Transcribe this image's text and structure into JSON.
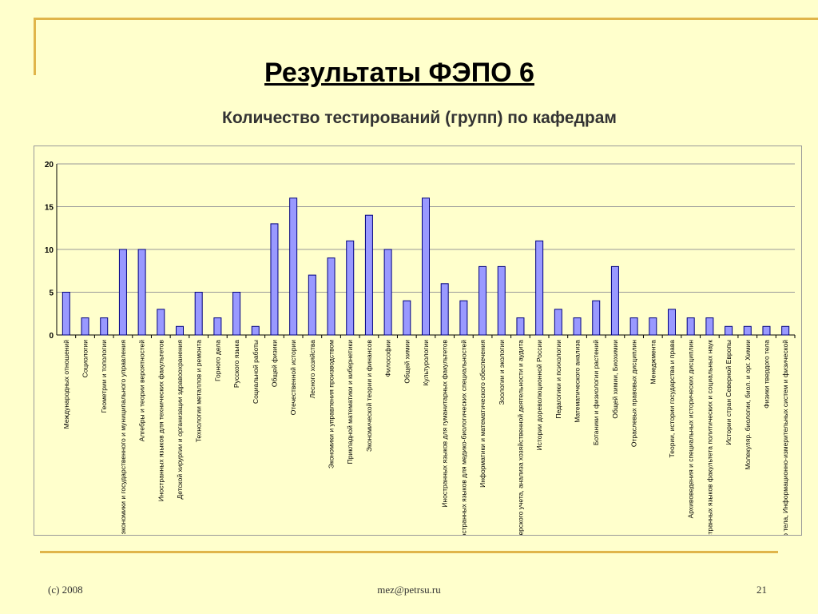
{
  "slide": {
    "title": "Результаты ФЭПО 6",
    "subtitle": "Количество тестирований (групп) по кафедрам",
    "footer_left": "(c) 2008",
    "footer_center": "mez@petrsu.ru",
    "footer_right": "21"
  },
  "colors": {
    "background": "#FFFFCC",
    "bar_fill": "#9999FF",
    "bar_stroke": "#000080",
    "accent_line": "#E0B54A"
  },
  "chart_data": {
    "type": "bar",
    "title": "",
    "xlabel": "",
    "ylabel": "",
    "ylim": [
      0,
      20
    ],
    "yticks": [
      "0",
      "5",
      "10",
      "15",
      "20"
    ],
    "grid": true,
    "legend": "none",
    "categories": [
      "Международных отношений",
      "Социологии",
      "Геометрии и топологии",
      "Теоретической экономики и государственного и муниципального управления",
      "Алгебры и теории вероятностей",
      "Иностранных языков для технических факультетов",
      "Детской хирургии и организации здравоохранения",
      "Технологии металлов и ремонта",
      "Горного дела",
      "Русского языка",
      "Социальной работы",
      "Общей физики",
      "Отечественной истории",
      "Лесного хозяйства",
      "Экономики и управления производством",
      "Прикладной математики и кибернетики",
      "Экономической теории и финансов",
      "Философии",
      "Общей химии",
      "Культурологии",
      "Иностранных языков для гуманитарных факультетов",
      "Иностранных языков для медико-биологических специальностей",
      "Информатики и математического обеспечения",
      "Зоологии и экологии",
      "Бухгалтерского учета, анализа хозяйственной деятельности и аудита",
      "Истории дореволюционной России",
      "Педагогики и психологии",
      "Математического анализа",
      "Ботаники и физиологии растений",
      "Общей химии, Биохимии",
      "Отраслевых правовых дисциплин",
      "Менеджмента",
      "Теории, истории государства и права",
      "Архивоведения и специальных исторических дисциплин",
      "Иностранных языков факультета политических и социальных наук",
      "Истории стран Северной Европы",
      "Молекуляр. биологии, биол. и орг. Химии",
      "Физики твердого тела",
      "Физики твердого тела, Информационно-измерительных систем и физической"
    ],
    "values": [
      5,
      2,
      2,
      10,
      10,
      3,
      1,
      5,
      2,
      5,
      1,
      13,
      16,
      7,
      9,
      11,
      14,
      10,
      4,
      16,
      6,
      4,
      8,
      8,
      2,
      11,
      3,
      2,
      4,
      8,
      2,
      2,
      3,
      2,
      2,
      1,
      1,
      1,
      1
    ]
  }
}
